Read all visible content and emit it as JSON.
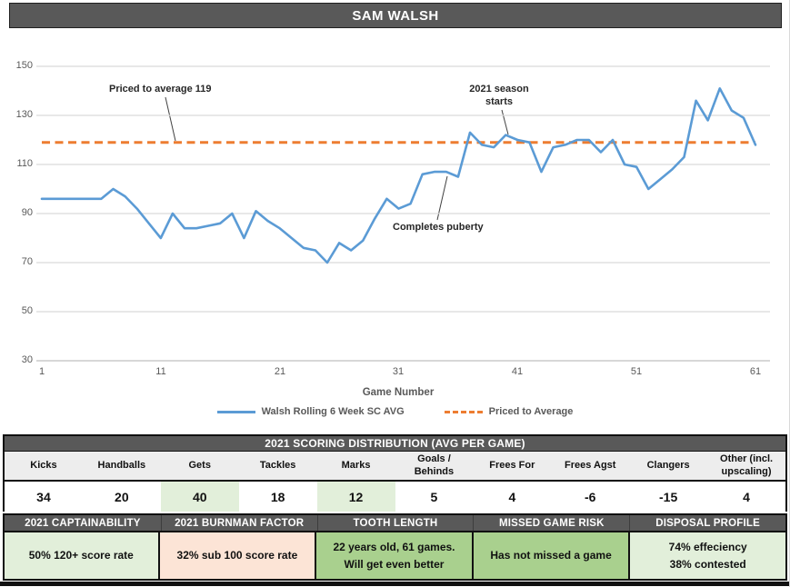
{
  "title": "SAM WALSH",
  "chart_data": {
    "type": "line",
    "xlabel": "Game Number",
    "xlim": [
      1,
      61
    ],
    "ylim": [
      30,
      150
    ],
    "x_ticks": [
      1,
      11,
      21,
      31,
      41,
      51,
      61
    ],
    "y_ticks": [
      30,
      50,
      70,
      90,
      110,
      130,
      150
    ],
    "grid": "horizontal",
    "legend_position": "bottom",
    "series": [
      {
        "name": "Walsh Rolling 6 Week SC AVG",
        "color": "#5B9BD5",
        "style": "solid",
        "x_start": 1,
        "values": [
          96,
          96,
          96,
          96,
          96,
          96,
          100,
          97,
          92,
          86,
          80,
          90,
          84,
          84,
          85,
          86,
          90,
          80,
          91,
          87,
          84,
          80,
          76,
          75,
          70,
          78,
          75,
          79,
          88,
          96,
          92,
          94,
          106,
          107,
          107,
          105,
          123,
          118,
          117,
          122,
          120,
          119,
          107,
          117,
          118,
          120,
          120,
          115,
          120,
          110,
          109,
          100,
          104,
          108,
          113,
          136,
          128,
          141,
          132,
          129,
          118
        ]
      },
      {
        "name": "Priced to Average",
        "color": "#ED7D31",
        "style": "dashed",
        "value": 119
      }
    ],
    "annotations": {
      "priced_to_average": {
        "text": "Priced to average 119"
      },
      "season_starts": {
        "text": "2021 season starts"
      },
      "puberty": {
        "text": "Completes puberty"
      }
    }
  },
  "scoring_table": {
    "header": "2021 SCORING DISTRIBUTION (AVG PER GAME)",
    "columns": [
      "Kicks",
      "Handballs",
      "Gets",
      "Tackles",
      "Marks",
      "Goals / Behinds",
      "Frees For",
      "Frees Agst",
      "Clangers",
      "Other (incl. upscaling)"
    ],
    "values": [
      "34",
      "20",
      "40",
      "18",
      "12",
      "5",
      "4",
      "-6",
      "-15",
      "4"
    ],
    "highlighted_columns": [
      2,
      4
    ],
    "highlight_color": "#E2EFDA"
  },
  "panels": [
    {
      "header": "2021 CAPTAINABILITY",
      "lines": [
        "50% 120+ score rate"
      ],
      "bg": "#E2EFDA"
    },
    {
      "header": "2021 BURNMAN FACTOR",
      "lines": [
        "32% sub 100 score rate"
      ],
      "bg": "#FCE4D6"
    },
    {
      "header": "TOOTH LENGTH",
      "lines": [
        "22 years old, 61 games.",
        "Will get even better"
      ],
      "bg": "#A9D08E"
    },
    {
      "header": "MISSED GAME RISK",
      "lines": [
        "Has not missed a game"
      ],
      "bg": "#A9D08E"
    },
    {
      "header": "DISPOSAL PROFILE",
      "lines": [
        "74% effeciency",
        "38% contested"
      ],
      "bg": "#E2EFDA"
    }
  ],
  "colors": {
    "header_bar": "#595959",
    "line_blue": "#5B9BD5",
    "line_orange": "#ED7D31",
    "gridline": "#D9D9D9",
    "light_green": "#E2EFDA",
    "medium_green": "#A9D08E",
    "light_salmon": "#FCE4D6"
  }
}
